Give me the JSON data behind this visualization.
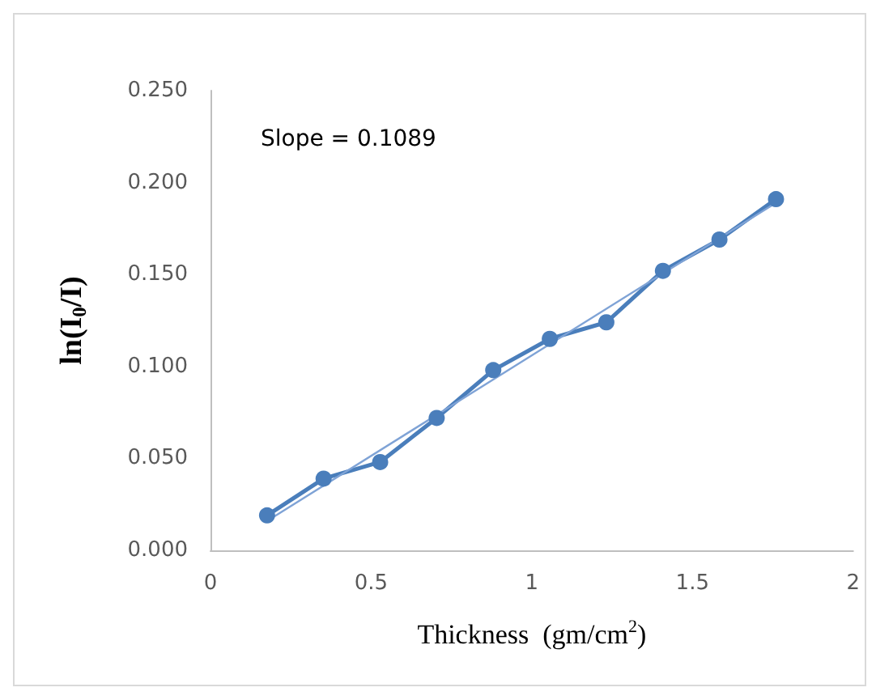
{
  "chart_data": {
    "type": "line",
    "xlabel": "Thickness  (gm/cm$^{2}$)",
    "ylabel": "ln(I$_{0}$/I)",
    "annotations": [
      "Slope = 0.1089"
    ],
    "x": [
      0.176,
      0.352,
      0.528,
      0.704,
      0.88,
      1.056,
      1.232,
      1.408,
      1.584,
      1.76
    ],
    "series": [
      {
        "color": "#4a7ebb",
        "values": [
          0.019,
          0.039,
          0.048,
          0.072,
          0.098,
          0.115,
          0.124,
          0.152,
          0.169,
          0.191
        ],
        "marker": "circle"
      },
      {
        "type": "line",
        "color": "#7fa3d6",
        "x": [
          0.176,
          1.76
        ],
        "values": [
          0.016,
          0.189
        ],
        "marker": "none"
      }
    ],
    "xlim": [
      0,
      2
    ],
    "xticks": [
      0,
      0.5,
      1,
      1.5,
      2
    ],
    "ylim": [
      0,
      0.25
    ],
    "yticks": [
      {
        "value": 0,
        "label": "0.000"
      },
      {
        "value": 0.05,
        "label": "0.050"
      },
      {
        "value": 0.1,
        "label": "0.100"
      },
      {
        "value": 0.15,
        "label": "0.150"
      },
      {
        "value": 0.2,
        "label": "0.200"
      },
      {
        "value": 0.25,
        "label": "0.250"
      }
    ],
    "grid": false
  }
}
